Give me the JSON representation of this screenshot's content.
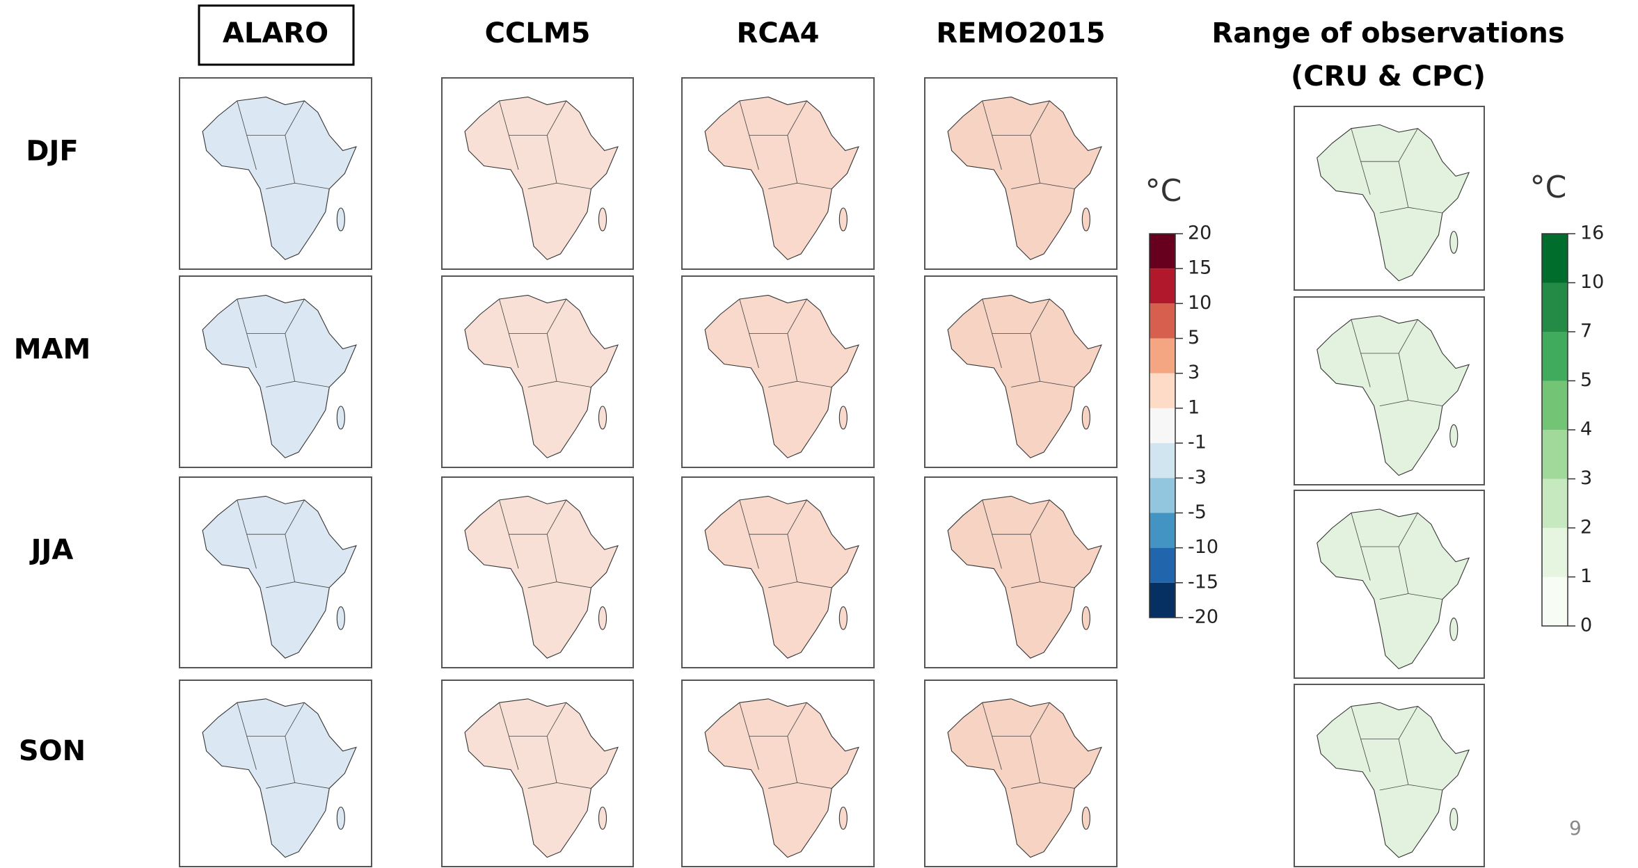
{
  "columns": [
    "ALARO",
    "CCLM5",
    "RCA4",
    "REMO2015"
  ],
  "observations_title": [
    "Range of observations",
    "(CRU & CPC)"
  ],
  "rows": [
    "DJF",
    "MAM",
    "JJA",
    "SON"
  ],
  "bias_colorbar": {
    "unit": "°C",
    "ticks": [
      20,
      15,
      10,
      5,
      3,
      1,
      -1,
      -3,
      -5,
      -10,
      -15,
      -20
    ],
    "colors": [
      "#67001f",
      "#b2182b",
      "#d6604d",
      "#f4a582",
      "#fddbc7",
      "#f7f7f7",
      "#d1e5f0",
      "#92c5de",
      "#4393c3",
      "#2166ac",
      "#053061"
    ]
  },
  "range_colorbar": {
    "unit": "°C",
    "ticks": [
      16,
      10,
      7,
      5,
      4,
      3,
      2,
      1,
      0
    ],
    "colors": [
      "#006d2c",
      "#238b45",
      "#41ab5d",
      "#74c476",
      "#a1d99b",
      "#c7e9c0",
      "#e5f5e0",
      "#f7fcf5"
    ]
  },
  "page_number": "9"
}
